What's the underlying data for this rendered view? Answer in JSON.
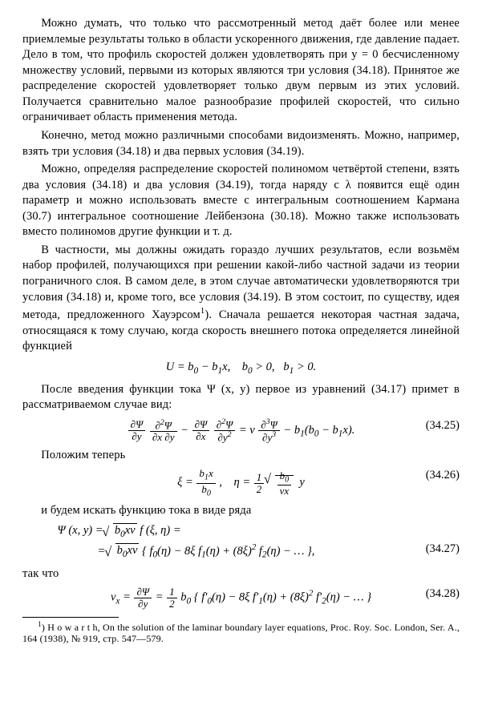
{
  "para1": "Можно думать, что только что рассмотренный метод даёт более или менее приемлемые результаты только в области ускоренного движения, где давление падает. Дело в том, что профиль скоростей должен удовлетворять при y = 0 бесчисленному множеству условий, первыми из которых являются три условия (34.18). Принятое же распределение скоростей удовлетворяет только двум первым из этих условий. Получается сравнительно малое разнообразие профилей скоростей, что сильно ограничивает область применения метода.",
  "para2": "Конечно, метод можно различными способами видоизменять. Можно, например, взять три условия (34.18) и два первых условия (34.19).",
  "para3": "Можно, определяя распределение скоростей полиномом четвёртой степени, взять два условия (34.18) и два условия (34.19), тогда наряду с λ появится ещё один параметр и можно использовать вместе с интегральным соотношением Кармана (30.7) интегральное соотношение Лейбензона (30.18). Можно также использовать вместо полиномов другие функции и т. д.",
  "para4a": "В частности, мы должны ожидать гораздо лучших результатов, если возьмём набор профилей, получающихся при решении какой-либо частной задачи из теории пограничного слоя. В самом деле, в этом случае автоматически удовлетворяются три условия (34.18) и, кроме того, все условия (34.19). В этом состоит, по существу, идея метода, предложенного Хауэрсом",
  "para4b": "). Сначала решается некоторая частная задача, относящаяся к тому случаю, когда скорость внешнего потока определяется линейной функцией",
  "para5": "После введения функции тока Ψ (x, y) первое из уравнений (34.17) примет в рассматриваемом случае вид:",
  "para6": "Положим теперь",
  "para7": "и будем искать функцию тока в виде ряда",
  "para8": "так что",
  "eqnum_25": "(34.25)",
  "eqnum_26": "(34.26)",
  "eqnum_27": "(34.27)",
  "eqnum_28": "(34.28)",
  "footnote": ") H o w a r t h, On the solution of the laminar boundary layer equations, Proc. Roy. Soc. London, Ser. A., 164 (1938), № 919, стр. 547—579.",
  "math": {
    "U_def": "U = b₀ − b₁x,   b₀ > 0,  b₁ > 0.",
    "b0": "b₀",
    "b1": "b₁",
    "bsub1x": "b₁x",
    "nu_x": "νx",
    "b0xnu": "b₀xν",
    "xi": "ξ",
    "eta": "η",
    "psi": "Ψ",
    "half": "½"
  }
}
